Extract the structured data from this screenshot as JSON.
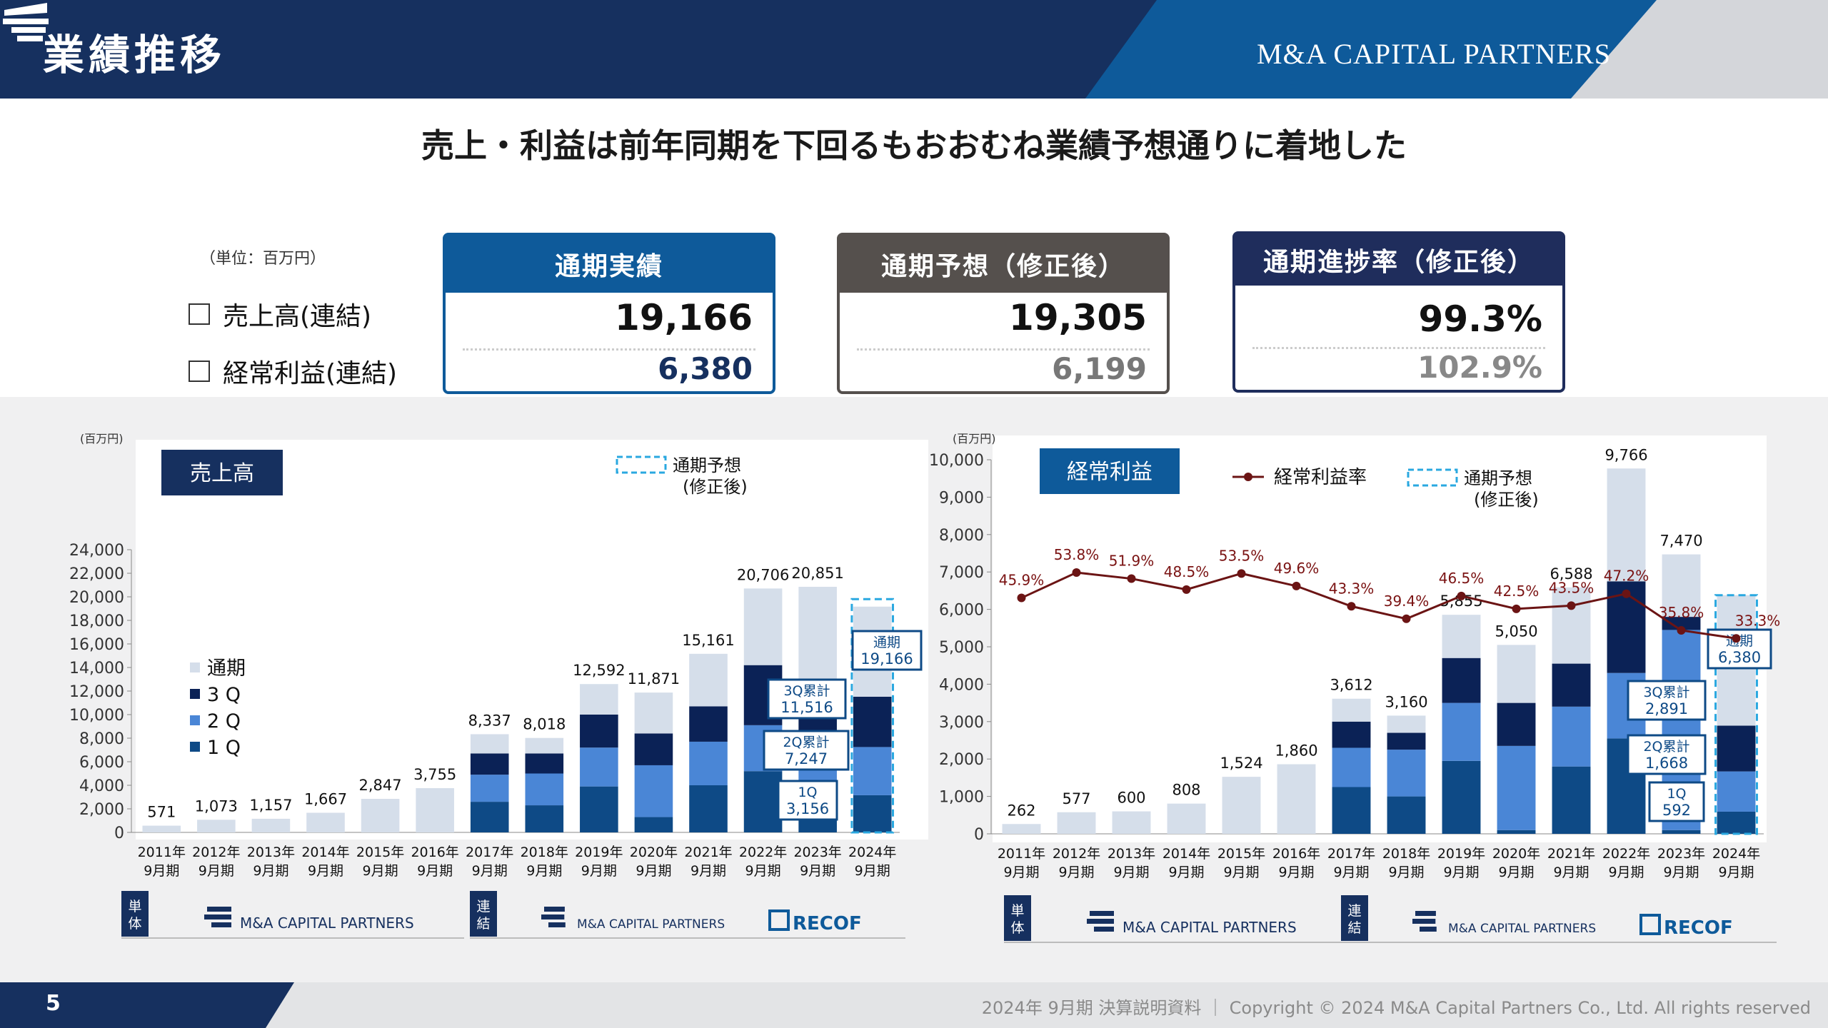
{
  "header": {
    "title": "業績推移",
    "company_logo_text": "M&A CAPITAL PARTNERS",
    "colors": {
      "navy": "#16305f",
      "blue": "#0e5a9a",
      "gray": "#d4d6da"
    }
  },
  "headline": "売上・利益は前年同期を下回るもおおむね業績予想通りに着地した",
  "summary": {
    "unit": "（単位：百万円）",
    "row_labels": [
      "売上高(連結)",
      "経常利益(連結)"
    ],
    "cards": [
      {
        "title": "通期実績",
        "main": "19,166",
        "sub": "6,380",
        "color": "#0e5a9a",
        "sub_color": "#16305f"
      },
      {
        "title": "通期予想（修正後）",
        "main": "19,305",
        "sub": "6,199",
        "color": "#55504d",
        "sub_color": "#777777"
      },
      {
        "title": "通期進捗率（修正後）",
        "main": "99.3%",
        "sub": "102.9%",
        "color": "#1f2d5c",
        "sub_color": "#888888"
      }
    ]
  },
  "chart_data": [
    {
      "type": "bar",
      "title": "売上高",
      "unit": "(百万円)",
      "categories": [
        "2011年|9月期",
        "2012年|9月期",
        "2013年|9月期",
        "2014年|9月期",
        "2015年|9月期",
        "2016年|9月期",
        "2017年|9月期",
        "2018年|9月期",
        "2019年|9月期",
        "2020年|9月期",
        "2021年|9月期",
        "2022年|9月期",
        "2023年|9月期",
        "2024年|9月期"
      ],
      "ylim": [
        0,
        24000
      ],
      "yticks": [
        0,
        2000,
        4000,
        6000,
        8000,
        10000,
        12000,
        14000,
        16000,
        18000,
        20000,
        22000,
        24000
      ],
      "ytick_labels": [
        "0",
        "2,000",
        "4,000",
        "6,000",
        "8,000",
        "10,000",
        "12,000",
        "14,000",
        "16,000",
        "18,000",
        "20,000",
        "22,000",
        "24,000"
      ],
      "totals": [
        571,
        1073,
        1157,
        1667,
        2847,
        3755,
        8337,
        8018,
        12592,
        11871,
        15161,
        20706,
        20851,
        19166
      ],
      "total_labels": [
        "571",
        "1,073",
        "1,157",
        "1,667",
        "2,847",
        "3,755",
        "8,337",
        "8,018",
        "12,592",
        "11,871",
        "15,161",
        "20,706",
        "20,851",
        ""
      ],
      "series": [
        {
          "name": "1 Q",
          "values": [
            null,
            null,
            null,
            null,
            null,
            null,
            2600,
            2300,
            3900,
            1300,
            4000,
            5200,
            2900,
            3156
          ],
          "color": "#0e4a86"
        },
        {
          "name": "2 Q",
          "values": [
            null,
            null,
            null,
            null,
            null,
            null,
            2300,
            2700,
            3300,
            4400,
            3700,
            3900,
            4300,
            4091
          ],
          "color": "#4a86d6"
        },
        {
          "name": "3 Q",
          "values": [
            null,
            null,
            null,
            null,
            null,
            null,
            1800,
            1700,
            2800,
            2700,
            3000,
            5100,
            2800,
            4269
          ],
          "color": "#0b2256"
        },
        {
          "name": "通期",
          "values": [
            571,
            1073,
            1157,
            1667,
            2847,
            3755,
            1637,
            1318,
            2592,
            3471,
            4461,
            6506,
            10851,
            7650
          ],
          "color": "#d5deea"
        }
      ],
      "legend": [
        "通期",
        "3 Q",
        "2 Q",
        "1 Q"
      ],
      "forecast_legend": [
        "通期予想",
        "(修正後)"
      ],
      "callouts": [
        {
          "label": "通期",
          "value": "19,166"
        },
        {
          "label": "3Q累計",
          "value": "11,516"
        },
        {
          "label": "2Q累計",
          "value": "7,247"
        },
        {
          "label": "1Q",
          "value": "3,156"
        }
      ],
      "footer": {
        "single": "単体",
        "consolidated": "連結",
        "logo_text": "M&A CAPITAL PARTNERS",
        "recof": "RECOF"
      }
    },
    {
      "type": "bar",
      "title": "経常利益",
      "unit": "(百万円)",
      "categories": [
        "2011年|9月期",
        "2012年|9月期",
        "2013年|9月期",
        "2014年|9月期",
        "2015年|9月期",
        "2016年|9月期",
        "2017年|9月期",
        "2018年|9月期",
        "2019年|9月期",
        "2020年|9月期",
        "2021年|9月期",
        "2022年|9月期",
        "2023年|9月期",
        "2024年|9月期"
      ],
      "ylim": [
        0,
        10000
      ],
      "yticks": [
        0,
        1000,
        2000,
        3000,
        4000,
        5000,
        6000,
        7000,
        8000,
        9000,
        10000
      ],
      "ytick_labels": [
        "0",
        "1,000",
        "2,000",
        "3,000",
        "4,000",
        "5,000",
        "6,000",
        "7,000",
        "8,000",
        "9,000",
        "10,000"
      ],
      "totals": [
        262,
        577,
        600,
        808,
        1524,
        1860,
        3612,
        3160,
        5855,
        5050,
        6588,
        9766,
        7470,
        6380
      ],
      "total_labels": [
        "262",
        "577",
        "600",
        "808",
        "1,524",
        "1,860",
        "3,612",
        "3,160",
        "5,855",
        "5,050",
        "6,588",
        "9,766",
        "7,470",
        ""
      ],
      "series": [
        {
          "name": "1Q",
          "values": [
            null,
            null,
            null,
            null,
            null,
            null,
            1250,
            1000,
            1950,
            100,
            1800,
            2550,
            100,
            592
          ],
          "color": "#0e4a86"
        },
        {
          "name": "2Q",
          "values": [
            null,
            null,
            null,
            null,
            null,
            null,
            1050,
            1250,
            1550,
            2250,
            1600,
            1750,
            5350,
            1076
          ],
          "color": "#4a86d6"
        },
        {
          "name": "3Q",
          "values": [
            null,
            null,
            null,
            null,
            null,
            null,
            700,
            450,
            1200,
            1150,
            1150,
            2450,
            350,
            1223
          ],
          "color": "#0b2256"
        },
        {
          "name": "通期",
          "values": [
            262,
            577,
            600,
            808,
            1524,
            1860,
            612,
            460,
            1155,
            1550,
            2038,
            3016,
            1670,
            3489
          ],
          "color": "#d5deea"
        }
      ],
      "ratio_series": {
        "name": "経常利益率",
        "values": [
          45.9,
          53.8,
          51.9,
          48.5,
          53.5,
          49.6,
          43.3,
          39.4,
          46.5,
          42.5,
          43.5,
          47.2,
          35.8,
          33.3
        ],
        "labels": [
          "45.9%",
          "53.8%",
          "51.9%",
          "48.5%",
          "53.5%",
          "49.6%",
          "43.3%",
          "39.4%",
          "46.5%",
          "42.5%",
          "43.5%",
          "47.2%",
          "35.8%",
          "33.3%"
        ],
        "color": "#6b1414"
      },
      "forecast_legend": [
        "通期予想",
        "(修正後)"
      ],
      "callouts": [
        {
          "label": "通期",
          "value": "6,380"
        },
        {
          "label": "3Q累計",
          "value": "2,891"
        },
        {
          "label": "2Q累計",
          "value": "1,668"
        },
        {
          "label": "1Q",
          "value": "592"
        }
      ],
      "footer": {
        "single": "単体",
        "consolidated": "連結",
        "logo_text": "M&A CAPITAL PARTNERS",
        "recof": "RECOF"
      }
    }
  ],
  "footer": {
    "page_number": "5",
    "text": "2024年 9月期 決算説明資料 ｜ Copyright © 2024 M&A Capital Partners Co., Ltd. All rights reserved"
  }
}
